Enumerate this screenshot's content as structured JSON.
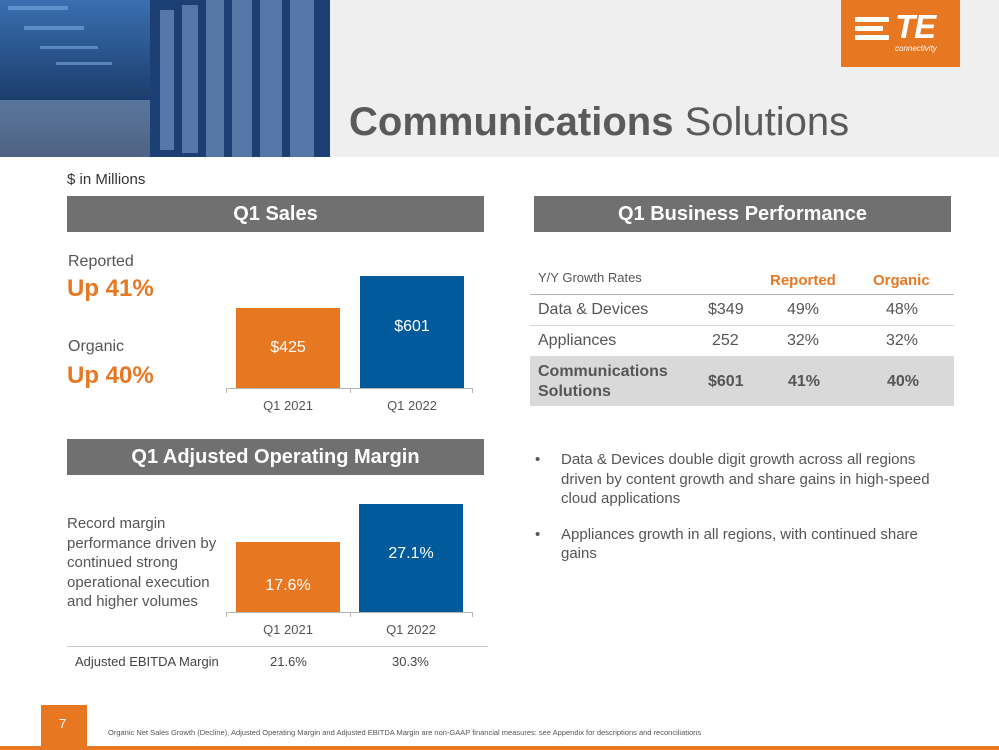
{
  "header": {
    "title_bold": "Communications",
    "title_rest": "Solutions",
    "logo_text": "TE",
    "logo_sub": "connectivity"
  },
  "units_note": "$ in Millions",
  "sales": {
    "heading": "Q1 Sales",
    "reported_label": "Reported",
    "reported_value": "Up 41%",
    "organic_label": "Organic",
    "organic_value": "Up 40%"
  },
  "margin": {
    "heading": "Q1 Adjusted Operating Margin",
    "note": "Record margin performance driven by continued strong operational execution and higher volumes",
    "ebitda_label": "Adjusted EBITDA Margin",
    "ebitda_2021": "21.6%",
    "ebitda_2022": "30.3%"
  },
  "chart_data": [
    {
      "type": "bar",
      "categories": [
        "Q1 2021",
        "Q1 2022"
      ],
      "values": [
        425,
        601
      ],
      "data_labels": [
        "$425",
        "$601"
      ],
      "colors": [
        "#e87722",
        "#005a9c"
      ],
      "ylim": [
        0,
        700
      ]
    },
    {
      "type": "bar",
      "categories": [
        "Q1 2021",
        "Q1 2022"
      ],
      "values": [
        17.6,
        27.1
      ],
      "data_labels": [
        "17.6%",
        "27.1%"
      ],
      "colors": [
        "#e87722",
        "#005a9c"
      ],
      "ylim": [
        0,
        30
      ]
    }
  ],
  "performance": {
    "heading": "Q1 Business Performance",
    "col_growth": "Y/Y Growth Rates",
    "col_reported": "Reported",
    "col_organic": "Organic",
    "rows": [
      {
        "name": "Data & Devices",
        "sales": "$349",
        "reported": "49%",
        "organic": "48%"
      },
      {
        "name": "Appliances",
        "sales": "252",
        "reported": "32%",
        "organic": "32%"
      }
    ],
    "total": {
      "name_line1": "Communications",
      "name_line2": "Solutions",
      "sales": "$601",
      "reported": "41%",
      "organic": "40%"
    }
  },
  "bullets": [
    "Data & Devices double digit growth across all regions driven by content growth and share gains in high-speed cloud applications",
    "Appliances growth in all regions, with continued share gains"
  ],
  "footer": {
    "page_number": "7",
    "disclaimer": "Organic Net Sales Growth (Decline), Adjusted Operating Margin and Adjusted EBITDA Margin are non-GAAP financial measures: see Appendix for descriptions and reconciliations"
  },
  "colors": {
    "accent": "#e87722",
    "blue": "#005a9c",
    "heading_bg": "#707070"
  }
}
